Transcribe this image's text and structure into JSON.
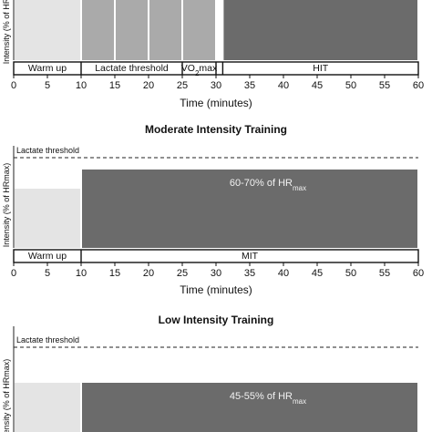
{
  "chart_data": [
    {
      "type": "bar",
      "title": "",
      "xlabel": "Time (minutes)",
      "ylabel": "Intensity (% of HR",
      "xlim": [
        0,
        60
      ],
      "x_ticks": [
        0,
        5,
        10,
        15,
        20,
        25,
        30,
        35,
        40,
        45,
        50,
        55,
        60
      ],
      "threshold_label": "",
      "blocks": [
        {
          "start": 0,
          "end": 10,
          "shade": "#e4e4e4"
        },
        {
          "start": 10,
          "end": 15,
          "shade": "#aaaaaa"
        },
        {
          "start": 15,
          "end": 20,
          "shade": "#aaaaaa"
        },
        {
          "start": 20,
          "end": 25,
          "shade": "#aaaaaa"
        },
        {
          "start": 25,
          "end": 30,
          "shade": "#aaaaaa"
        },
        {
          "start": 31,
          "end": 60,
          "shade": "#6b6b6b"
        }
      ],
      "phases": [
        {
          "label": "Warm up",
          "start": 0,
          "end": 10
        },
        {
          "label": "Lactate threshold",
          "start": 10,
          "end": 25
        },
        {
          "label": "VO",
          "sub": "2",
          "suffix": "max",
          "start": 25,
          "end": 30
        },
        {
          "label": "",
          "start": 30,
          "end": 31
        },
        {
          "label": "HIT",
          "start": 31,
          "end": 60
        }
      ]
    },
    {
      "type": "bar",
      "title": "Moderate Intensity Training",
      "xlabel": "Time (minutes)",
      "ylabel": "Intensity (% of HRmax)",
      "xlim": [
        0,
        60
      ],
      "x_ticks": [
        0,
        5,
        10,
        15,
        20,
        25,
        30,
        35,
        40,
        45,
        50,
        55,
        60
      ],
      "threshold_label": "Lactate threshold",
      "blocks": [
        {
          "start": 0,
          "end": 10,
          "shade": "#e4e4e4",
          "level": 0.66
        },
        {
          "start": 10,
          "end": 60,
          "shade": "#6b6b6b",
          "level": 0.8,
          "label": "60-70% of HR",
          "label_sub": "max"
        }
      ],
      "phases": [
        {
          "label": "Warm up",
          "start": 0,
          "end": 10
        },
        {
          "label": "MIT",
          "start": 10,
          "end": 60
        }
      ]
    },
    {
      "type": "bar",
      "title": "Low Intensity Training",
      "xlabel": "",
      "ylabel": "Intensity (% of HRmax)",
      "xlim": [
        0,
        60
      ],
      "threshold_label": "Lactate threshold",
      "blocks": [
        {
          "start": 0,
          "end": 10,
          "shade": "#e4e4e4"
        },
        {
          "start": 10,
          "end": 60,
          "shade": "#6b6b6b",
          "label": "45-55% of HR",
          "label_sub": "max"
        }
      ]
    }
  ]
}
